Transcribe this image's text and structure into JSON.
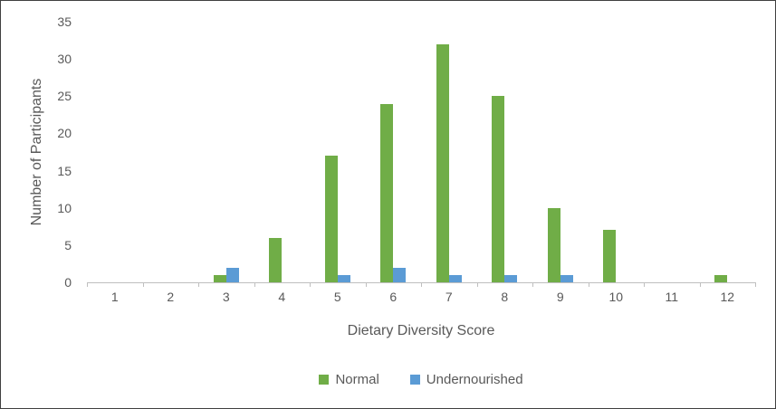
{
  "chart_data": {
    "type": "bar",
    "title": "",
    "xlabel": "Dietary Diversity Score",
    "ylabel": "Number of Participants",
    "categories": [
      "1",
      "2",
      "3",
      "4",
      "5",
      "6",
      "7",
      "8",
      "9",
      "10",
      "11",
      "12"
    ],
    "series": [
      {
        "name": "Normal",
        "color": "#70AD47",
        "values": [
          0,
          0,
          1,
          6,
          17,
          24,
          32,
          25,
          10,
          7,
          0,
          1
        ]
      },
      {
        "name": "Undernourished",
        "color": "#5B9BD5",
        "values": [
          0,
          0,
          2,
          0,
          1,
          2,
          1,
          1,
          1,
          0,
          0,
          0
        ]
      }
    ],
    "ylim": [
      0,
      35
    ],
    "yticks": [
      0,
      5,
      10,
      15,
      20,
      25,
      30,
      35
    ],
    "grid": false,
    "legend_position": "bottom",
    "colors": {
      "axis_line": "#BFBFBF",
      "text": "#595959",
      "background": "#FFFFFF",
      "border": "#404040"
    }
  }
}
